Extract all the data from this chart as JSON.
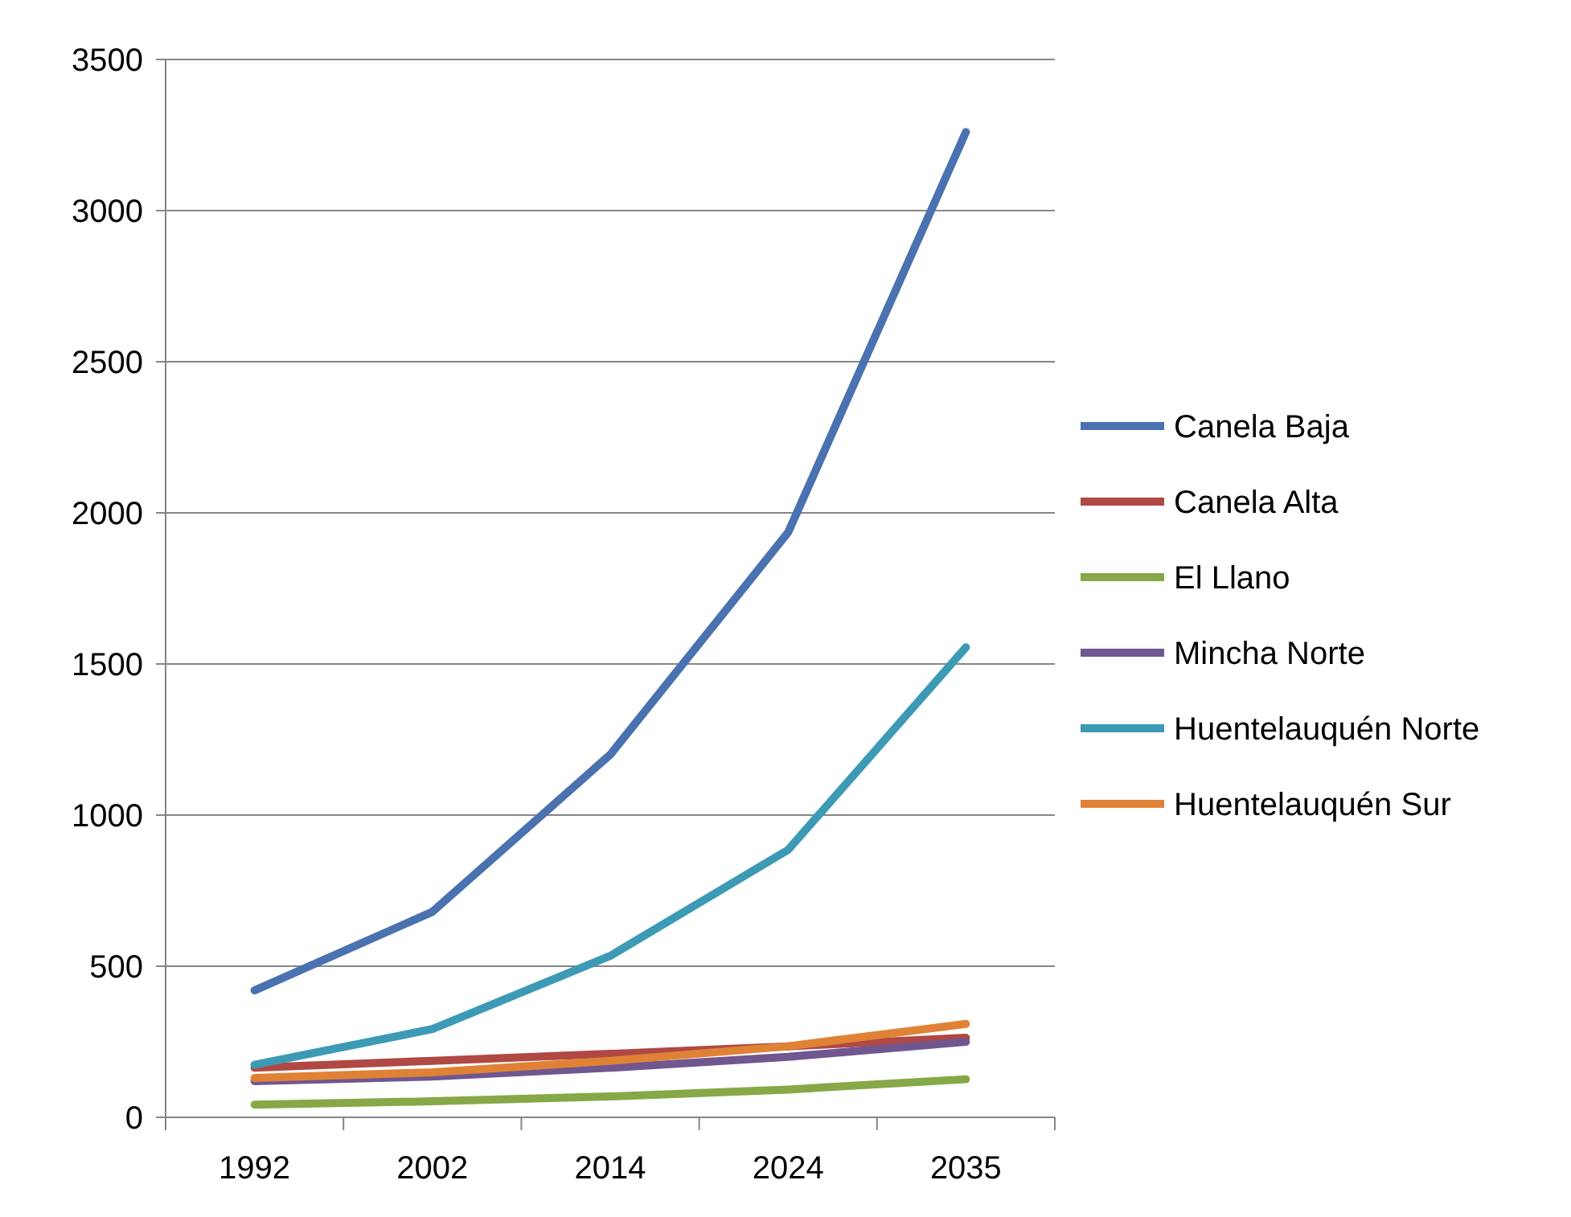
{
  "chart_data": {
    "type": "line",
    "categories": [
      "1992",
      "2002",
      "2014",
      "2024",
      "2035"
    ],
    "ylim": [
      0,
      3500
    ],
    "yticks": [
      0,
      500,
      1000,
      1500,
      2000,
      2500,
      3000,
      3500
    ],
    "grid": "y",
    "legend": "right",
    "marker": "none",
    "line_style": "solid",
    "series": [
      {
        "name": "Canela Baja",
        "color": "#4a72b0",
        "values": [
          420,
          680,
          1200,
          1935,
          3260
        ]
      },
      {
        "name": "Canela Alta",
        "color": "#b04844",
        "values": [
          164,
          187,
          210,
          235,
          263
        ]
      },
      {
        "name": "El Llano",
        "color": "#86a846",
        "values": [
          42,
          53,
          69,
          92,
          126
        ]
      },
      {
        "name": "Mincha Norte",
        "color": "#70578f",
        "values": [
          120,
          135,
          164,
          200,
          250
        ]
      },
      {
        "name": "Huentelauquén Norte",
        "color": "#3c9ab4",
        "values": [
          174,
          292,
          534,
          885,
          1555
        ]
      },
      {
        "name": "Huentelauquén Sur",
        "color": "#e08236",
        "values": [
          130,
          149,
          187,
          235,
          309
        ]
      }
    ]
  }
}
